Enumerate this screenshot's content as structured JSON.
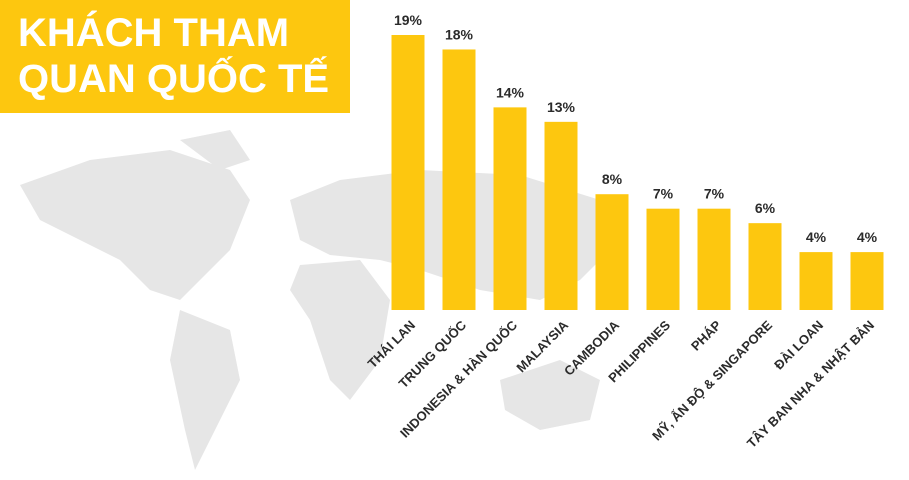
{
  "chart_data": {
    "type": "bar",
    "title": "KHÁCH THAM QUAN QUỐC TẾ",
    "categories": [
      "THÁI LAN",
      "TRUNG QUỐC",
      "INDONESIA & HÀN QUỐC",
      "MALAYSIA",
      "CAMBODIA",
      "PHILIPPINES",
      "PHÁP",
      "MỸ, ẤN ĐỘ & SINGAPORE",
      "ĐÀI LOAN",
      "TÂY BAN NHA & NHẬT BẢN"
    ],
    "values": [
      19,
      18,
      14,
      13,
      8,
      7,
      7,
      6,
      4,
      4
    ],
    "value_labels": [
      "19%",
      "18%",
      "14%",
      "13%",
      "8%",
      "7%",
      "7%",
      "6%",
      "4%",
      "4%"
    ],
    "color": "#fdc70f"
  }
}
